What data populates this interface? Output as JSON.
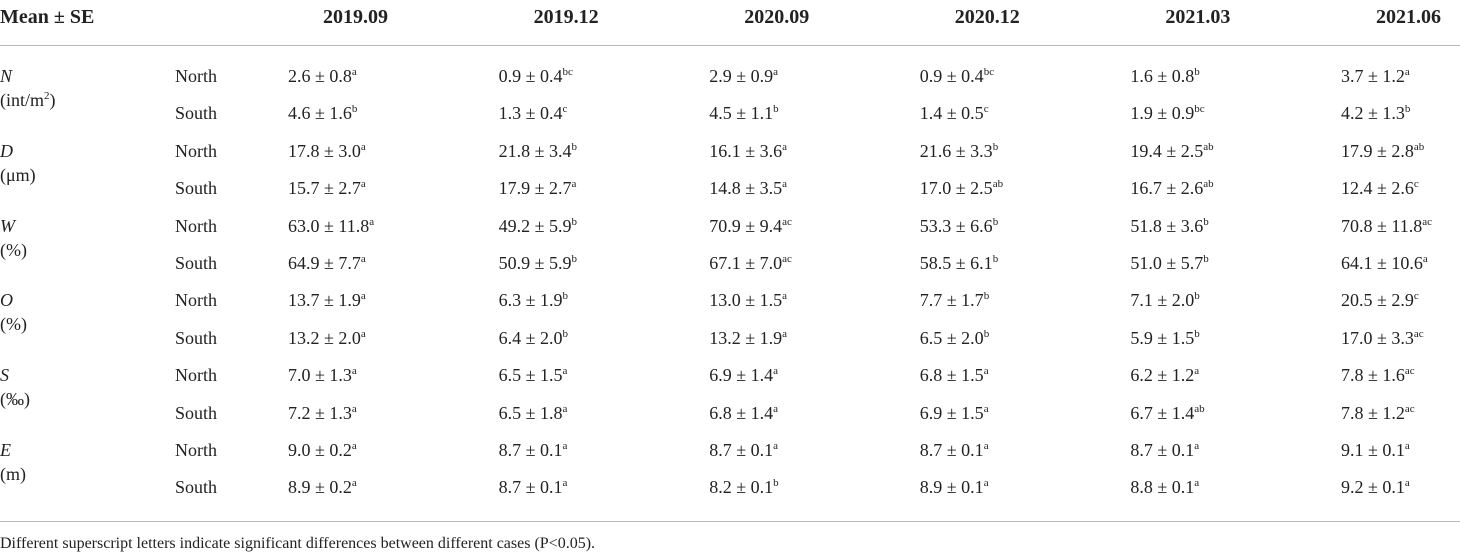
{
  "table": {
    "header": {
      "label": "Mean ± SE",
      "columns": [
        "2019.09",
        "2019.12",
        "2020.09",
        "2020.12",
        "2021.03",
        "2021.06"
      ]
    },
    "groups": [
      {
        "symbol": "N",
        "unit": "(int/m",
        "unit_sup": "2",
        "unit_tail": ")",
        "rows": [
          {
            "site": "North",
            "cells": [
              {
                "text": "2.6 ± 0.8",
                "sig": "a"
              },
              {
                "text": "0.9 ± 0.4",
                "sig": "bc"
              },
              {
                "text": "2.9 ± 0.9",
                "sig": "a"
              },
              {
                "text": "0.9 ± 0.4",
                "sig": "bc"
              },
              {
                "text": "1.6 ± 0.8",
                "sig": "b"
              },
              {
                "text": "3.7 ± 1.2",
                "sig": "a"
              }
            ]
          },
          {
            "site": "South",
            "cells": [
              {
                "text": "4.6 ± 1.6",
                "sig": "b"
              },
              {
                "text": "1.3 ± 0.4",
                "sig": "c"
              },
              {
                "text": "4.5 ± 1.1",
                "sig": "b"
              },
              {
                "text": "1.4 ± 0.5",
                "sig": "c"
              },
              {
                "text": "1.9 ± 0.9",
                "sig": "bc"
              },
              {
                "text": "4.2 ± 1.3",
                "sig": "b"
              }
            ]
          }
        ]
      },
      {
        "symbol": "D",
        "unit": "(μm)",
        "rows": [
          {
            "site": "North",
            "cells": [
              {
                "text": "17.8 ± 3.0",
                "sig": "a"
              },
              {
                "text": "21.8 ± 3.4",
                "sig": "b"
              },
              {
                "text": "16.1 ± 3.6",
                "sig": "a"
              },
              {
                "text": "21.6 ± 3.3",
                "sig": "b"
              },
              {
                "text": "19.4 ± 2.5",
                "sig": "ab"
              },
              {
                "text": "17.9 ± 2.8",
                "sig": "ab"
              }
            ]
          },
          {
            "site": "South",
            "cells": [
              {
                "text": "15.7 ± 2.7",
                "sig": "a"
              },
              {
                "text": "17.9 ± 2.7",
                "sig": "a"
              },
              {
                "text": "14.8 ± 3.5",
                "sig": "a"
              },
              {
                "text": "17.0 ± 2.5",
                "sig": "ab"
              },
              {
                "text": "16.7 ± 2.6",
                "sig": "ab"
              },
              {
                "text": "12.4 ± 2.6",
                "sig": "c"
              }
            ]
          }
        ]
      },
      {
        "symbol": "W",
        "unit": "(%)",
        "rows": [
          {
            "site": "North",
            "cells": [
              {
                "text": "63.0 ± 11.8",
                "sig": "a"
              },
              {
                "text": "49.2 ± 5.9",
                "sig": "b"
              },
              {
                "text": "70.9 ± 9.4",
                "sig": "ac"
              },
              {
                "text": "53.3 ± 6.6",
                "sig": "b"
              },
              {
                "text": "51.8 ± 3.6",
                "sig": "b"
              },
              {
                "text": "70.8 ± 11.8",
                "sig": "ac"
              }
            ]
          },
          {
            "site": "South",
            "cells": [
              {
                "text": "64.9 ± 7.7",
                "sig": "a"
              },
              {
                "text": "50.9 ± 5.9",
                "sig": "b"
              },
              {
                "text": "67.1 ± 7.0",
                "sig": "ac"
              },
              {
                "text": "58.5 ± 6.1",
                "sig": "b"
              },
              {
                "text": "51.0 ± 5.7",
                "sig": "b"
              },
              {
                "text": "64.1 ± 10.6",
                "sig": "a"
              }
            ]
          }
        ]
      },
      {
        "symbol": "O",
        "unit": "(%)",
        "rows": [
          {
            "site": "North",
            "cells": [
              {
                "text": "13.7 ± 1.9",
                "sig": "a"
              },
              {
                "text": "6.3 ± 1.9",
                "sig": "b"
              },
              {
                "text": "13.0 ± 1.5",
                "sig": "a"
              },
              {
                "text": "7.7 ± 1.7",
                "sig": "b"
              },
              {
                "text": "7.1 ± 2.0",
                "sig": "b"
              },
              {
                "text": "20.5 ± 2.9",
                "sig": "c"
              }
            ]
          },
          {
            "site": "South",
            "cells": [
              {
                "text": "13.2 ± 2.0",
                "sig": "a"
              },
              {
                "text": "6.4 ± 2.0",
                "sig": "b"
              },
              {
                "text": "13.2 ± 1.9",
                "sig": "a"
              },
              {
                "text": "6.5 ± 2.0",
                "sig": "b"
              },
              {
                "text": "5.9 ± 1.5",
                "sig": "b"
              },
              {
                "text": "17.0 ± 3.3",
                "sig": "ac"
              }
            ]
          }
        ]
      },
      {
        "symbol": "S",
        "unit": "(‰)",
        "rows": [
          {
            "site": "North",
            "cells": [
              {
                "text": "7.0 ± 1.3",
                "sig": "a"
              },
              {
                "text": "6.5 ± 1.5",
                "sig": "a"
              },
              {
                "text": "6.9 ± 1.4",
                "sig": "a"
              },
              {
                "text": "6.8 ± 1.5",
                "sig": "a"
              },
              {
                "text": "6.2 ± 1.2",
                "sig": "a"
              },
              {
                "text": "7.8 ± 1.6",
                "sig": "ac"
              }
            ]
          },
          {
            "site": "South",
            "cells": [
              {
                "text": "7.2 ± 1.3",
                "sig": "a"
              },
              {
                "text": "6.5 ± 1.8",
                "sig": "a"
              },
              {
                "text": "6.8 ± 1.4",
                "sig": "a"
              },
              {
                "text": "6.9 ± 1.5",
                "sig": "a"
              },
              {
                "text": "6.7 ± 1.4",
                "sig": "ab"
              },
              {
                "text": "7.8 ± 1.2",
                "sig": "ac"
              }
            ]
          }
        ]
      },
      {
        "symbol": "E",
        "unit": "(m)",
        "rows": [
          {
            "site": "North",
            "cells": [
              {
                "text": "9.0 ± 0.2",
                "sig": "a"
              },
              {
                "text": "8.7 ± 0.1",
                "sig": "a"
              },
              {
                "text": "8.7 ± 0.1",
                "sig": "a"
              },
              {
                "text": "8.7 ± 0.1",
                "sig": "a"
              },
              {
                "text": "8.7 ± 0.1",
                "sig": "a"
              },
              {
                "text": "9.1 ± 0.1",
                "sig": "a"
              }
            ]
          },
          {
            "site": "South",
            "cells": [
              {
                "text": "8.9 ± 0.2",
                "sig": "a"
              },
              {
                "text": "8.7 ± 0.1",
                "sig": "a"
              },
              {
                "text": "8.2 ± 0.1",
                "sig": "b"
              },
              {
                "text": "8.9 ± 0.1",
                "sig": "a"
              },
              {
                "text": "8.8 ± 0.1",
                "sig": "a"
              },
              {
                "text": "9.2 ± 0.1",
                "sig": "a"
              }
            ]
          }
        ]
      }
    ],
    "footnote": "Different superscript letters indicate significant differences between different cases (P<0.05)."
  }
}
